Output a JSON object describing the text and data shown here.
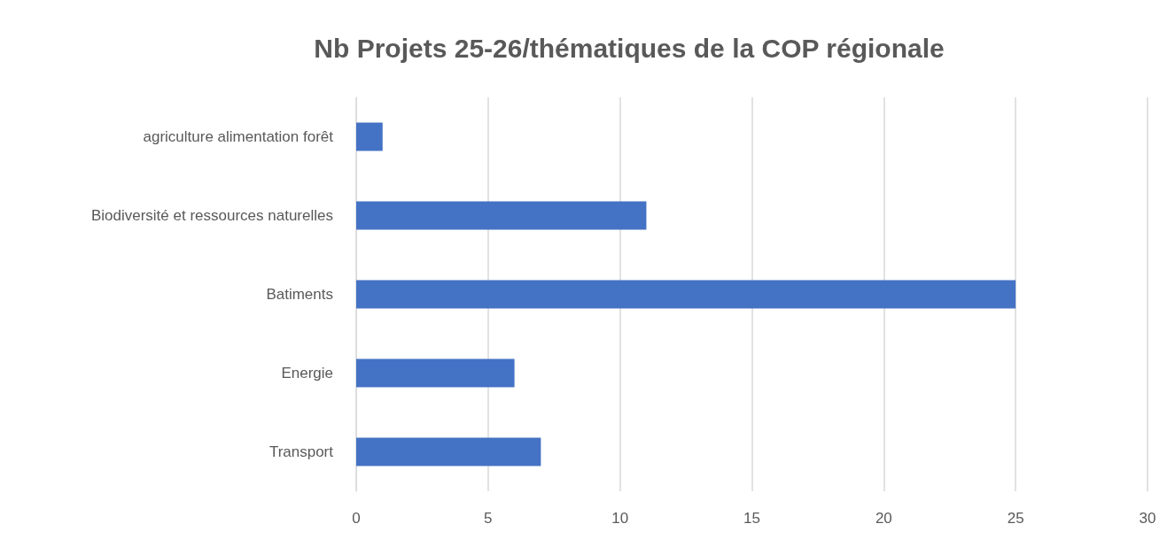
{
  "chart_data": {
    "type": "bar",
    "orientation": "horizontal",
    "title": "Nb Projets 25-26/thématiques de la COP régionale",
    "categories": [
      "agriculture alimentation forêt",
      "Biodiversité et ressources naturelles",
      "Batiments",
      "Energie",
      "Transport"
    ],
    "values": [
      1,
      11,
      25,
      6,
      7
    ],
    "color": "#4472c4",
    "xlim": [
      0,
      30
    ],
    "xticks": [
      0,
      5,
      10,
      15,
      20,
      25,
      30
    ],
    "grid": "x"
  }
}
